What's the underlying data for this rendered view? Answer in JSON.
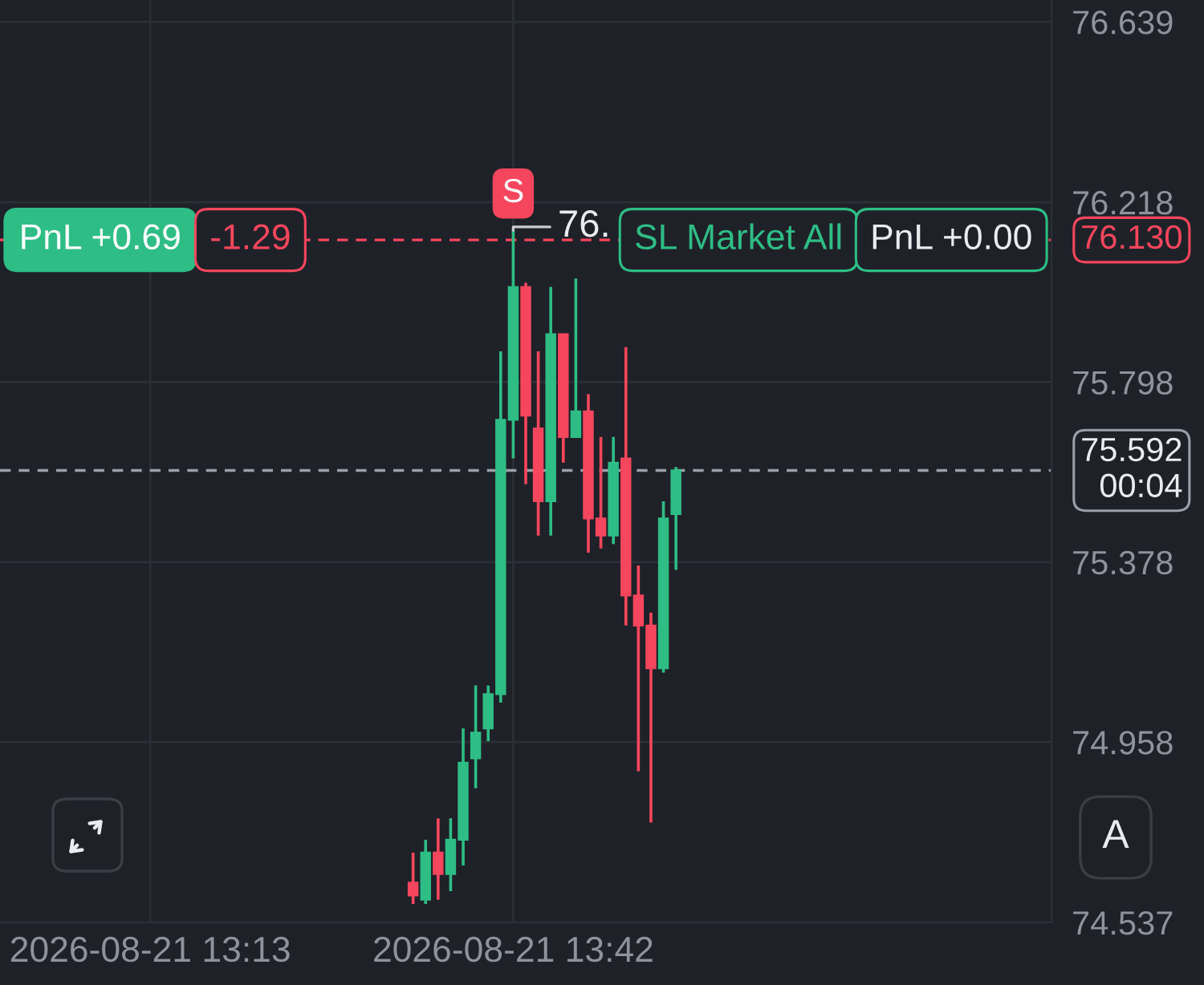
{
  "chart_data": {
    "type": "candlestick",
    "x": [
      "2026-08-21T13:34",
      "2026-08-21T13:35",
      "2026-08-21T13:36",
      "2026-08-21T13:37",
      "2026-08-21T13:38",
      "2026-08-21T13:39",
      "2026-08-21T13:40",
      "2026-08-21T13:41",
      "2026-08-21T13:42",
      "2026-08-21T13:43",
      "2026-08-21T13:44",
      "2026-08-21T13:45",
      "2026-08-21T13:46",
      "2026-08-21T13:47",
      "2026-08-21T13:48",
      "2026-08-21T13:49",
      "2026-08-21T13:50",
      "2026-08-21T13:51",
      "2026-08-21T13:52",
      "2026-08-21T13:53",
      "2026-08-21T13:54",
      "2026-08-21T13:55"
    ],
    "ohlc": [
      [
        74.63,
        74.7,
        74.58,
        74.6
      ],
      [
        74.59,
        74.73,
        74.58,
        74.7
      ],
      [
        74.7,
        74.78,
        74.59,
        74.65
      ],
      [
        74.65,
        74.78,
        74.61,
        74.73
      ],
      [
        74.73,
        74.99,
        74.67,
        74.91
      ],
      [
        74.92,
        75.09,
        74.85,
        74.98
      ],
      [
        74.99,
        75.09,
        74.96,
        75.07
      ],
      [
        75.07,
        75.87,
        75.05,
        75.71
      ],
      [
        75.71,
        76.15,
        75.62,
        76.02
      ],
      [
        76.02,
        76.03,
        75.56,
        75.72
      ],
      [
        75.69,
        75.87,
        75.44,
        75.52
      ],
      [
        75.52,
        76.02,
        75.44,
        75.91
      ],
      [
        75.91,
        75.91,
        75.61,
        75.67
      ],
      [
        75.67,
        76.04,
        75.67,
        75.73
      ],
      [
        75.73,
        75.77,
        75.4,
        75.48
      ],
      [
        75.48,
        75.67,
        75.41,
        75.44
      ],
      [
        75.44,
        75.67,
        75.42,
        75.61
      ],
      [
        75.62,
        75.88,
        75.23,
        75.3
      ],
      [
        75.3,
        75.37,
        74.89,
        75.23
      ],
      [
        75.23,
        75.26,
        74.77,
        75.13
      ],
      [
        75.13,
        75.52,
        75.12,
        75.48
      ],
      [
        75.49,
        75.6,
        75.36,
        75.592
      ]
    ],
    "colors": [
      "#f6465d",
      "#2ebd85",
      "#f6465d",
      "#2ebd85",
      "#2ebd85",
      "#2ebd85",
      "#2ebd85",
      "#2ebd85",
      "#2ebd85",
      "#f6465d",
      "#f6465d",
      "#2ebd85",
      "#f6465d",
      "#2ebd85",
      "#f6465d",
      "#f6465d",
      "#2ebd85",
      "#f6465d",
      "#f6465d",
      "#f6465d",
      "#2ebd85",
      "#2ebd85"
    ],
    "xlim": [
      "2026-08-21T13:01",
      "2026-08-21T14:25"
    ],
    "xticks": [
      {
        "value": "2026-08-21T13:13",
        "label": "2026-08-21 13:13"
      },
      {
        "value": "2026-08-21T13:42",
        "label": "2026-08-21 13:42"
      }
    ],
    "ylim": [
      74.537,
      76.69
    ],
    "yticks": [
      74.537,
      74.958,
      75.378,
      75.798,
      76.218,
      76.639
    ],
    "grid": true,
    "ref_lines": [
      {
        "axis": "y",
        "value": 76.13,
        "label": "76.130",
        "color": "#f6465d",
        "line_style": "dashed"
      },
      {
        "axis": "y",
        "value": 75.592,
        "label": "75.592\n00:04",
        "color": "#9aa0a8",
        "line_style": "dashed"
      }
    ],
    "annotations": [
      {
        "text": "S",
        "x": "2026-08-21T13:42",
        "y": 76.15
      },
      {
        "text": "76.",
        "x": "2026-08-21T13:42",
        "y": 76.15
      },
      {
        "text": "PnL +0.69",
        "x": "2026-08-21T13:09",
        "y": 76.13
      },
      {
        "text": "-1.29",
        "x": "2026-08-21T13:21",
        "y": 76.13
      },
      {
        "text": "SL Market All",
        "x": "2026-08-21T14:00",
        "y": 76.13
      },
      {
        "text": "PnL +0.00",
        "x": "2026-08-21T14:17",
        "y": 76.13
      },
      "A"
    ]
  }
}
